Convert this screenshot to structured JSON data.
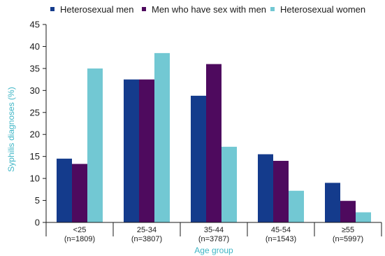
{
  "chart_data": {
    "type": "bar",
    "title": "",
    "xlabel": "Age group",
    "ylabel": "Syphilis diagnoses (%)",
    "ylim": [
      0,
      45
    ],
    "yticks": [
      0,
      5,
      10,
      15,
      20,
      25,
      30,
      35,
      40,
      45
    ],
    "grid": false,
    "legend_position": "top",
    "categories": [
      {
        "label": "<25",
        "n": "(n=1809)"
      },
      {
        "label": "25-34",
        "n": "(n=3807)"
      },
      {
        "label": "35-44",
        "n": "(n=3787)"
      },
      {
        "label": "45-54",
        "n": "(n=1543)"
      },
      {
        "label": "≥55",
        "n": "(n=5997)"
      }
    ],
    "series": [
      {
        "name": "Heterosexual men",
        "color": "#143b8c",
        "values": [
          14.5,
          32.5,
          28.8,
          15.5,
          9.0
        ]
      },
      {
        "name": "Men who have sex with men",
        "color": "#4e0a5e",
        "values": [
          13.3,
          32.5,
          36.0,
          14.0,
          4.9
        ]
      },
      {
        "name": "Heterosexual women",
        "color": "#72c8d3",
        "values": [
          35.0,
          38.5,
          17.2,
          7.2,
          2.3
        ]
      }
    ]
  }
}
